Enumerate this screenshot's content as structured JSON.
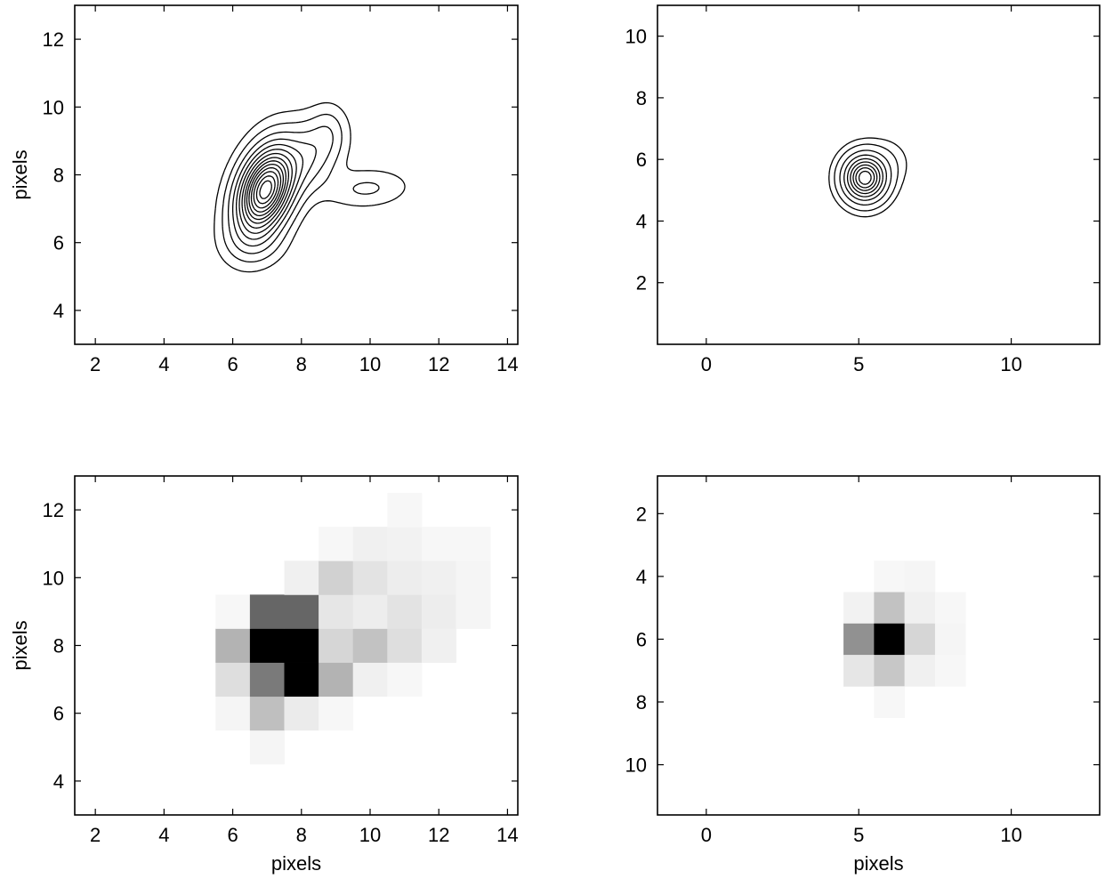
{
  "chart_data": [
    {
      "type": "contour",
      "xlabel": "",
      "ylabel": "pixels",
      "xlim": [
        1.4,
        14.3
      ],
      "ylim": [
        3.0,
        13.0
      ],
      "xticks": [
        2,
        4,
        6,
        8,
        10,
        12,
        14
      ],
      "yticks": [
        4,
        6,
        8,
        10,
        12
      ],
      "y_direction": "up",
      "blobs": [
        {
          "x": 6.95,
          "y": 7.55,
          "sx": 0.55,
          "sy": 0.85,
          "rho": 0.35,
          "amp": 1.0
        },
        {
          "x": 8.3,
          "y": 8.6,
          "sx": 0.55,
          "sy": 0.7,
          "rho": 0.3,
          "amp": 0.2
        },
        {
          "x": 9.9,
          "y": 7.6,
          "sx": 0.75,
          "sy": 0.35,
          "rho": 0.1,
          "amp": 0.09
        },
        {
          "x": 8.8,
          "y": 9.3,
          "sx": 0.3,
          "sy": 0.45,
          "rho": 0.0,
          "amp": 0.06
        },
        {
          "x": 6.6,
          "y": 6.0,
          "sx": 0.55,
          "sy": 0.45,
          "rho": 0.0,
          "amp": 0.08
        }
      ],
      "levels": [
        0.03,
        0.08,
        0.15,
        0.23,
        0.31,
        0.39,
        0.47,
        0.55,
        0.62,
        0.69,
        0.76,
        0.83,
        0.9,
        0.96
      ]
    },
    {
      "type": "contour",
      "xlabel": "",
      "ylabel": "",
      "xlim": [
        -1.6,
        12.9
      ],
      "ylim": [
        0.0,
        11.0
      ],
      "xticks": [
        0,
        5,
        10
      ],
      "yticks": [
        2,
        4,
        6,
        8,
        10
      ],
      "y_direction": "up",
      "blobs": [
        {
          "x": 5.2,
          "y": 5.4,
          "sx": 0.42,
          "sy": 0.45,
          "rho": 0.0,
          "amp": 1.0
        },
        {
          "x": 5.9,
          "y": 5.9,
          "sx": 0.45,
          "sy": 0.45,
          "rho": 0.0,
          "amp": 0.05
        }
      ],
      "levels": [
        0.02,
        0.06,
        0.15,
        0.27,
        0.4,
        0.53,
        0.66,
        0.78,
        0.9
      ]
    },
    {
      "type": "heatmap",
      "xlabel": "pixels",
      "ylabel": "pixels",
      "xlim": [
        1.4,
        14.3
      ],
      "ylim": [
        3.0,
        13.0
      ],
      "xticks": [
        2,
        4,
        6,
        8,
        10,
        12,
        14
      ],
      "yticks": [
        4,
        6,
        8,
        10,
        12
      ],
      "y_direction": "up",
      "colormap": "white-to-black",
      "cells": [
        {
          "x": 7,
          "y": 5,
          "v": 0.04
        },
        {
          "x": 6,
          "y": 6,
          "v": 0.04
        },
        {
          "x": 7,
          "y": 6,
          "v": 0.25
        },
        {
          "x": 8,
          "y": 6,
          "v": 0.08
        },
        {
          "x": 9,
          "y": 6,
          "v": 0.03
        },
        {
          "x": 6,
          "y": 7,
          "v": 0.13
        },
        {
          "x": 7,
          "y": 7,
          "v": 0.52
        },
        {
          "x": 8,
          "y": 7,
          "v": 1.0
        },
        {
          "x": 9,
          "y": 7,
          "v": 0.3
        },
        {
          "x": 10,
          "y": 7,
          "v": 0.06
        },
        {
          "x": 11,
          "y": 7,
          "v": 0.03
        },
        {
          "x": 6,
          "y": 8,
          "v": 0.3
        },
        {
          "x": 7,
          "y": 8,
          "v": 1.0
        },
        {
          "x": 8,
          "y": 8,
          "v": 1.0
        },
        {
          "x": 9,
          "y": 8,
          "v": 0.16
        },
        {
          "x": 10,
          "y": 8,
          "v": 0.24
        },
        {
          "x": 11,
          "y": 8,
          "v": 0.13
        },
        {
          "x": 12,
          "y": 8,
          "v": 0.06
        },
        {
          "x": 6,
          "y": 9,
          "v": 0.03
        },
        {
          "x": 7,
          "y": 9,
          "v": 0.6
        },
        {
          "x": 8,
          "y": 9,
          "v": 0.6
        },
        {
          "x": 9,
          "y": 9,
          "v": 0.1
        },
        {
          "x": 10,
          "y": 9,
          "v": 0.07
        },
        {
          "x": 11,
          "y": 9,
          "v": 0.11
        },
        {
          "x": 12,
          "y": 9,
          "v": 0.07
        },
        {
          "x": 13,
          "y": 9,
          "v": 0.04
        },
        {
          "x": 8,
          "y": 10,
          "v": 0.06
        },
        {
          "x": 9,
          "y": 10,
          "v": 0.18
        },
        {
          "x": 10,
          "y": 10,
          "v": 0.11
        },
        {
          "x": 11,
          "y": 10,
          "v": 0.07
        },
        {
          "x": 12,
          "y": 10,
          "v": 0.06
        },
        {
          "x": 13,
          "y": 10,
          "v": 0.04
        },
        {
          "x": 9,
          "y": 11,
          "v": 0.03
        },
        {
          "x": 10,
          "y": 11,
          "v": 0.06
        },
        {
          "x": 11,
          "y": 11,
          "v": 0.05
        },
        {
          "x": 12,
          "y": 11,
          "v": 0.03
        },
        {
          "x": 13,
          "y": 11,
          "v": 0.03
        },
        {
          "x": 11,
          "y": 12,
          "v": 0.03
        }
      ]
    },
    {
      "type": "heatmap",
      "xlabel": "pixels",
      "ylabel": "",
      "xlim": [
        -1.6,
        12.9
      ],
      "ylim": [
        0.8,
        11.6
      ],
      "xticks": [
        0,
        5,
        10
      ],
      "yticks": [
        2,
        4,
        6,
        8,
        10
      ],
      "y_direction": "down",
      "colormap": "white-to-black",
      "cells": [
        {
          "x": 6,
          "y": 4,
          "v": 0.03
        },
        {
          "x": 7,
          "y": 4,
          "v": 0.04
        },
        {
          "x": 5,
          "y": 5,
          "v": 0.05
        },
        {
          "x": 6,
          "y": 5,
          "v": 0.24
        },
        {
          "x": 7,
          "y": 5,
          "v": 0.06
        },
        {
          "x": 8,
          "y": 5,
          "v": 0.03
        },
        {
          "x": 5,
          "y": 6,
          "v": 0.43
        },
        {
          "x": 6,
          "y": 6,
          "v": 1.0
        },
        {
          "x": 7,
          "y": 6,
          "v": 0.16
        },
        {
          "x": 8,
          "y": 6,
          "v": 0.04
        },
        {
          "x": 5,
          "y": 7,
          "v": 0.1
        },
        {
          "x": 6,
          "y": 7,
          "v": 0.22
        },
        {
          "x": 7,
          "y": 7,
          "v": 0.06
        },
        {
          "x": 8,
          "y": 7,
          "v": 0.03
        },
        {
          "x": 6,
          "y": 8,
          "v": 0.03
        }
      ]
    }
  ]
}
